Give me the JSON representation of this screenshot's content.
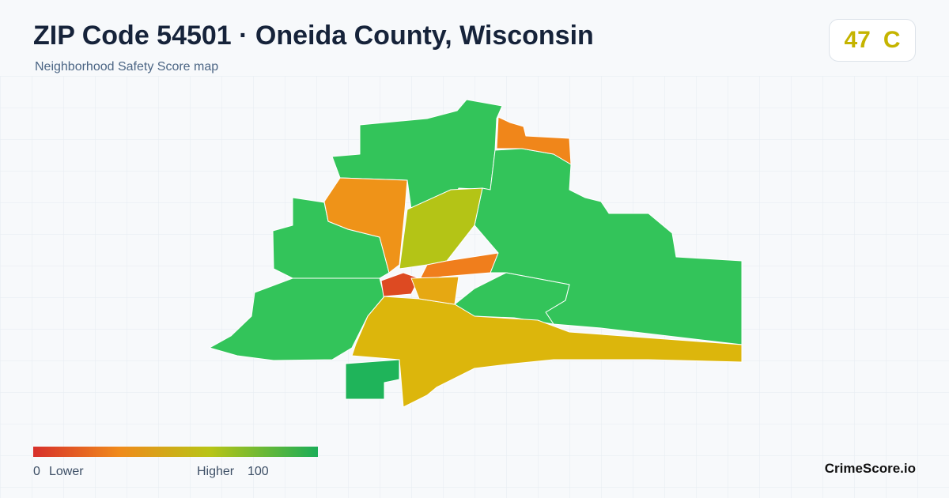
{
  "header": {
    "title": "ZIP Code 54501 · Oneida County, Wisconsin",
    "subtitle": "Neighborhood Safety Score map"
  },
  "score": {
    "value": 47,
    "grade": "C"
  },
  "legend": {
    "min": 0,
    "min_label": "Lower",
    "max_label": "Higher",
    "max": 100
  },
  "brand": "CrimeScore.io"
}
